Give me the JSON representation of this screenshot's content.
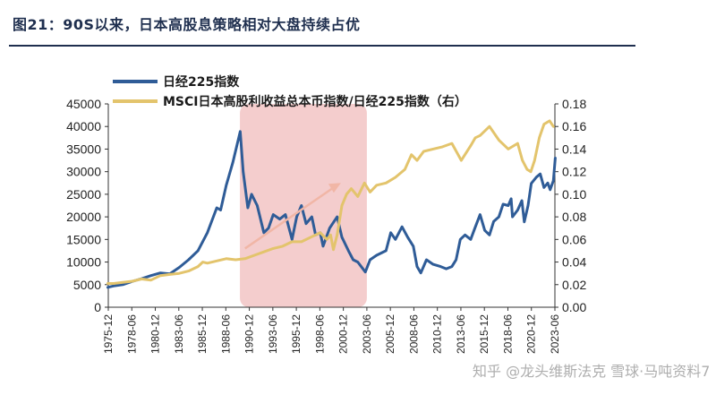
{
  "figure_title": "图21：90S以来，日本高股息策略相对大盘持续占优",
  "watermark": "知乎 @龙头维斯法克 雪球·马吨资料7",
  "colors": {
    "nikkei": "#2f5c97",
    "ratio": "#e3c46c",
    "highlight": "#f2c4c4",
    "arrow": "#f1b6a6",
    "axis": "#333333"
  },
  "chart_data": {
    "type": "line",
    "legend_position": "top-left",
    "grid": false,
    "left_axis": {
      "min": 0,
      "max": 45000,
      "ticks": [
        "0",
        "5000",
        "10000",
        "15000",
        "20000",
        "25000",
        "30000",
        "35000",
        "40000",
        "45000"
      ]
    },
    "right_axis": {
      "min": 0,
      "max": 0.18,
      "ticks": [
        "0.00",
        "0.02",
        "0.04",
        "0.06",
        "0.08",
        "0.10",
        "0.12",
        "0.14",
        "0.16",
        "0.18"
      ]
    },
    "x_start": "1975-12",
    "x_end": "2023-06",
    "x_ticks": [
      "1975-12",
      "1978-06",
      "1980-12",
      "1983-06",
      "1985-12",
      "1988-06",
      "1990-12",
      "1993-06",
      "1995-12",
      "1998-06",
      "2000-12",
      "2003-06",
      "2005-12",
      "2008-06",
      "2010-12",
      "2013-06",
      "2015-12",
      "2018-06",
      "2020-12",
      "2023-06"
    ],
    "highlight_period": [
      "1989-12",
      "2003-06"
    ],
    "annotation": "arrow from 1990-06 to 2000-09 indicating outperformance",
    "series": [
      {
        "name": "日经225指数",
        "axis": "left",
        "points": [
          [
            1975.9,
            4400
          ],
          [
            1976.5,
            4700
          ],
          [
            1977.5,
            5000
          ],
          [
            1978.5,
            5700
          ],
          [
            1979.5,
            6300
          ],
          [
            1980.5,
            7000
          ],
          [
            1981.5,
            7600
          ],
          [
            1982.5,
            7400
          ],
          [
            1983.5,
            8800
          ],
          [
            1984.5,
            10500
          ],
          [
            1985.5,
            12500
          ],
          [
            1986.5,
            16500
          ],
          [
            1987.5,
            22000
          ],
          [
            1987.9,
            21500
          ],
          [
            1988.5,
            27000
          ],
          [
            1989.2,
            32000
          ],
          [
            1989.99,
            38900
          ],
          [
            1990.3,
            30000
          ],
          [
            1990.8,
            22000
          ],
          [
            1991.2,
            25000
          ],
          [
            1991.8,
            22500
          ],
          [
            1992.5,
            16500
          ],
          [
            1993.0,
            17500
          ],
          [
            1993.5,
            20500
          ],
          [
            1994.2,
            19500
          ],
          [
            1994.8,
            20500
          ],
          [
            1995.5,
            15000
          ],
          [
            1996.0,
            20000
          ],
          [
            1996.5,
            22500
          ],
          [
            1997.0,
            18500
          ],
          [
            1997.6,
            20000
          ],
          [
            1998.0,
            16000
          ],
          [
            1998.5,
            16500
          ],
          [
            1998.8,
            13500
          ],
          [
            1999.5,
            17500
          ],
          [
            2000.3,
            20000
          ],
          [
            2000.8,
            15500
          ],
          [
            2001.5,
            12500
          ],
          [
            2002.0,
            10500
          ],
          [
            2002.5,
            10000
          ],
          [
            2003.3,
            7800
          ],
          [
            2003.8,
            10500
          ],
          [
            2004.5,
            11500
          ],
          [
            2005.5,
            12500
          ],
          [
            2006.0,
            16500
          ],
          [
            2006.5,
            15000
          ],
          [
            2007.2,
            17800
          ],
          [
            2007.8,
            15500
          ],
          [
            2008.4,
            13500
          ],
          [
            2008.8,
            9000
          ],
          [
            2009.2,
            7600
          ],
          [
            2009.8,
            10500
          ],
          [
            2010.5,
            9500
          ],
          [
            2011.3,
            9000
          ],
          [
            2011.9,
            8500
          ],
          [
            2012.5,
            9000
          ],
          [
            2012.95,
            10500
          ],
          [
            2013.4,
            15000
          ],
          [
            2013.9,
            16000
          ],
          [
            2014.5,
            15000
          ],
          [
            2014.95,
            17500
          ],
          [
            2015.5,
            20500
          ],
          [
            2016.0,
            17000
          ],
          [
            2016.5,
            16000
          ],
          [
            2016.95,
            19000
          ],
          [
            2017.5,
            20000
          ],
          [
            2017.95,
            22800
          ],
          [
            2018.5,
            22500
          ],
          [
            2018.8,
            24000
          ],
          [
            2018.95,
            20000
          ],
          [
            2019.5,
            21500
          ],
          [
            2019.95,
            23600
          ],
          [
            2020.2,
            18900
          ],
          [
            2020.6,
            22500
          ],
          [
            2020.95,
            27400
          ],
          [
            2021.5,
            28800
          ],
          [
            2021.9,
            29500
          ],
          [
            2022.3,
            26500
          ],
          [
            2022.7,
            27500
          ],
          [
            2022.95,
            26000
          ],
          [
            2023.3,
            28000
          ],
          [
            2023.5,
            33000
          ]
        ]
      },
      {
        "name": "MSCI日本高股利收益总本币指数/日经225指数（右）",
        "axis": "right",
        "points": [
          [
            1975.9,
            0.021
          ],
          [
            1976.5,
            0.021
          ],
          [
            1977.5,
            0.022
          ],
          [
            1978.5,
            0.023
          ],
          [
            1979.5,
            0.025
          ],
          [
            1980.5,
            0.024
          ],
          [
            1981.5,
            0.028
          ],
          [
            1982.5,
            0.029
          ],
          [
            1983.5,
            0.03
          ],
          [
            1984.5,
            0.032
          ],
          [
            1985.5,
            0.036
          ],
          [
            1986.0,
            0.04
          ],
          [
            1986.5,
            0.039
          ],
          [
            1987.5,
            0.041
          ],
          [
            1988.5,
            0.043
          ],
          [
            1989.5,
            0.042
          ],
          [
            1990.5,
            0.043
          ],
          [
            1991.5,
            0.046
          ],
          [
            1992.5,
            0.049
          ],
          [
            1993.5,
            0.052
          ],
          [
            1994.5,
            0.054
          ],
          [
            1995.5,
            0.058
          ],
          [
            1996.5,
            0.058
          ],
          [
            1997.5,
            0.062
          ],
          [
            1998.5,
            0.066
          ],
          [
            1999.2,
            0.06
          ],
          [
            1999.6,
            0.064
          ],
          [
            1999.9,
            0.051
          ],
          [
            2000.3,
            0.064
          ],
          [
            2000.8,
            0.09
          ],
          [
            2001.3,
            0.1
          ],
          [
            2001.8,
            0.105
          ],
          [
            2002.5,
            0.098
          ],
          [
            2003.2,
            0.11
          ],
          [
            2003.8,
            0.102
          ],
          [
            2004.5,
            0.108
          ],
          [
            2005.5,
            0.11
          ],
          [
            2006.5,
            0.115
          ],
          [
            2007.5,
            0.122
          ],
          [
            2008.2,
            0.135
          ],
          [
            2008.8,
            0.13
          ],
          [
            2009.5,
            0.138
          ],
          [
            2010.5,
            0.14
          ],
          [
            2011.5,
            0.142
          ],
          [
            2012.5,
            0.145
          ],
          [
            2013.5,
            0.13
          ],
          [
            2014.5,
            0.143
          ],
          [
            2015.0,
            0.15
          ],
          [
            2015.5,
            0.152
          ],
          [
            2016.5,
            0.16
          ],
          [
            2017.5,
            0.148
          ],
          [
            2018.5,
            0.14
          ],
          [
            2019.5,
            0.145
          ],
          [
            2020.0,
            0.13
          ],
          [
            2020.5,
            0.122
          ],
          [
            2020.9,
            0.12
          ],
          [
            2021.3,
            0.13
          ],
          [
            2021.8,
            0.15
          ],
          [
            2022.3,
            0.162
          ],
          [
            2022.9,
            0.165
          ],
          [
            2023.3,
            0.16
          ]
        ]
      }
    ]
  }
}
